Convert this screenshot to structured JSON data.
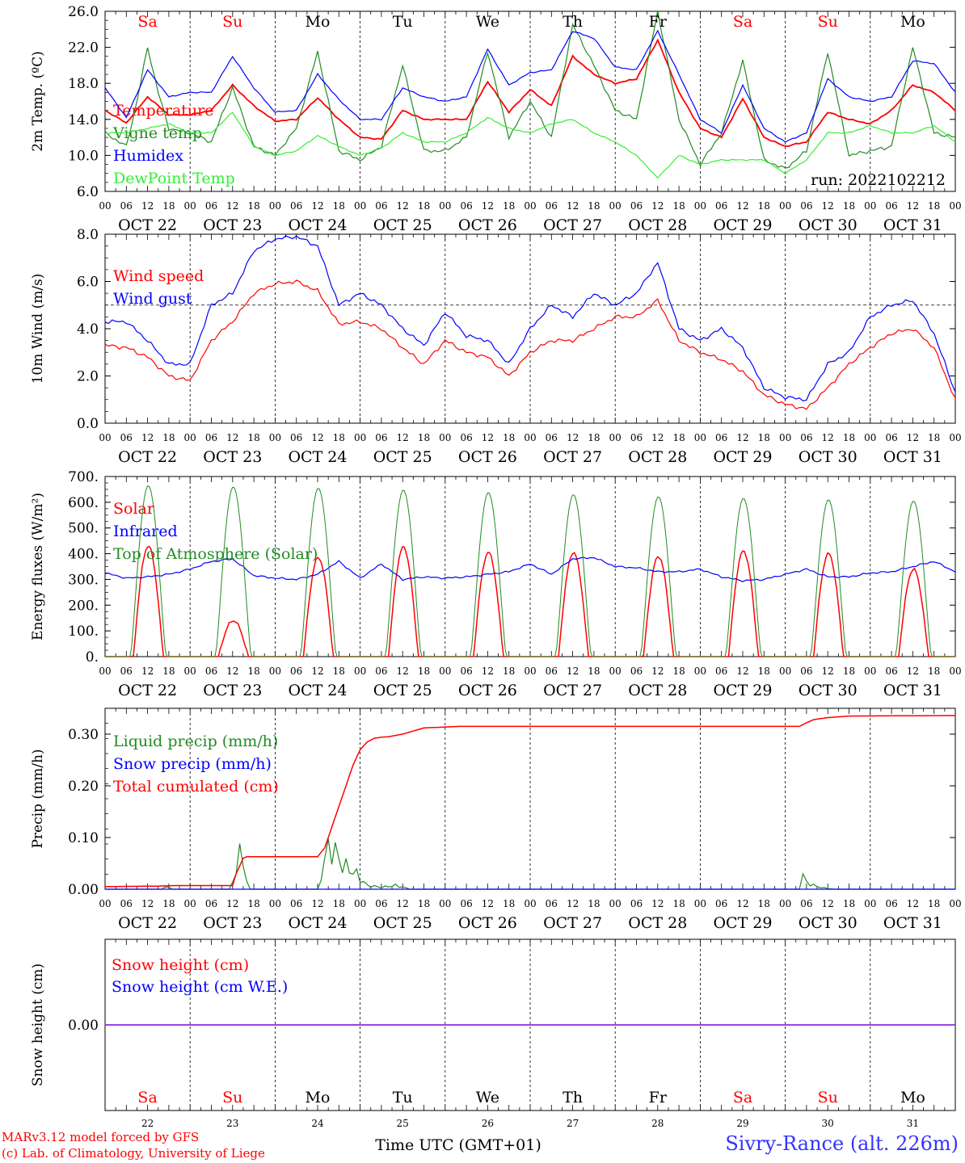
{
  "station": "Sivry-Rance (alt. 226m)",
  "credits": [
    "MARv3.12 model forced by GFS",
    "(c) Lab. of Climatology, University of Liege"
  ],
  "run_label": "run: 2022102212",
  "time_axis_label": "Time UTC (GMT+01)",
  "hour_tick_labels": [
    "00",
    "06",
    "12",
    "18"
  ],
  "date_labels": [
    "OCT 22",
    "OCT 23",
    "OCT 24",
    "OCT 25",
    "OCT 26",
    "OCT 27",
    "OCT 28",
    "OCT 29",
    "OCT 30",
    "OCT 31"
  ],
  "weekday_labels": [
    "Sa",
    "Su",
    "Mo",
    "Tu",
    "We",
    "Th",
    "Fr",
    "Sa",
    "Su",
    "Mo"
  ],
  "weekend_flags": [
    true,
    true,
    false,
    false,
    false,
    false,
    false,
    true,
    true,
    false
  ],
  "day_numbers": [
    "22",
    "23",
    "24",
    "25",
    "26",
    "27",
    "28",
    "29",
    "30",
    "31"
  ],
  "colors": {
    "temperature": "#ff0000",
    "vigne": "#228b22",
    "humidex": "#0000ff",
    "dewpoint": "#33ee33",
    "solar": "#ff0000",
    "infrared": "#0000ff",
    "toa": "#228b22",
    "liquid": "#228b22",
    "snowprecip": "#0000ff",
    "cumulated": "#ff0000",
    "snowheight": "#ff0000",
    "snowwe": "#0000ff",
    "snowline": "#8a2be2",
    "weekend": "#ff0000"
  },
  "chart_data": [
    {
      "type": "line",
      "ylabel": "2m Temp. (ºC)",
      "ylim": [
        6,
        26
      ],
      "yticks": [
        "6.0",
        "10.0",
        "14.0",
        "18.0",
        "22.0",
        "26.0"
      ],
      "x_unit": "hours since OCT 22 00 UTC",
      "series": [
        {
          "name": "Temperature",
          "key": "temperature",
          "x": [
            0,
            6,
            12,
            18,
            24,
            30,
            36,
            42,
            48,
            54,
            60,
            66,
            72,
            78,
            84,
            90,
            96,
            102,
            108,
            114,
            120,
            126,
            132,
            138,
            144,
            150,
            156,
            162,
            168,
            174,
            180,
            186,
            192,
            198,
            204,
            210,
            216,
            222,
            228,
            234,
            240
          ],
          "values": [
            15,
            13.6,
            16.5,
            14.5,
            14.5,
            15,
            17.8,
            15.5,
            13.8,
            14,
            16.4,
            14,
            12,
            11.8,
            15,
            14,
            14,
            14,
            18.2,
            14.8,
            17.3,
            15.5,
            21,
            19,
            18,
            18.5,
            22.8,
            17,
            13,
            12,
            16.3,
            12,
            11,
            11.5,
            14.8,
            14,
            13.5,
            15,
            17.8,
            17,
            15
          ]
        },
        {
          "name": "Vigne temp",
          "key": "vigne",
          "x": [
            0,
            6,
            9,
            12,
            15,
            18,
            24,
            30,
            36,
            42,
            48,
            54,
            60,
            66,
            72,
            78,
            84,
            90,
            96,
            102,
            108,
            114,
            120,
            126,
            132,
            138,
            144,
            150,
            156,
            162,
            168,
            174,
            180,
            186,
            192,
            198,
            204,
            210,
            216,
            222,
            228,
            234,
            240
          ],
          "values": [
            12.5,
            11,
            16,
            22,
            17,
            13,
            12.5,
            11.5,
            17.5,
            11,
            10,
            13,
            21.5,
            10.5,
            9.5,
            11,
            20,
            10.5,
            10.5,
            12,
            21.5,
            12,
            16,
            12,
            24.5,
            20,
            15,
            14,
            26,
            14,
            9,
            12.5,
            20.5,
            9.5,
            8.5,
            10.5,
            21.5,
            10,
            10.5,
            11,
            22,
            12.5,
            12
          ]
        },
        {
          "name": "Humidex",
          "key": "humidex",
          "x": [
            0,
            6,
            12,
            18,
            24,
            30,
            36,
            42,
            48,
            54,
            60,
            66,
            72,
            78,
            84,
            90,
            96,
            102,
            108,
            114,
            120,
            126,
            132,
            138,
            144,
            150,
            156,
            162,
            168,
            174,
            180,
            186,
            192,
            198,
            204,
            210,
            216,
            222,
            228,
            234,
            240
          ],
          "values": [
            17.5,
            14.2,
            19.5,
            16.5,
            17,
            17,
            21,
            17.5,
            14.8,
            15,
            19,
            16.2,
            14,
            14,
            17.5,
            16.5,
            16,
            16.5,
            21.8,
            17.8,
            19.2,
            19.5,
            23.8,
            23,
            19.8,
            19.5,
            23.8,
            19,
            14,
            12.5,
            17.8,
            13,
            11.5,
            12.5,
            18.5,
            16.5,
            16,
            16.5,
            20.5,
            20.2,
            17
          ]
        },
        {
          "name": "DewPoint Temp",
          "key": "dewpoint",
          "x": [
            0,
            6,
            12,
            18,
            24,
            30,
            36,
            42,
            48,
            54,
            60,
            66,
            72,
            78,
            84,
            90,
            96,
            102,
            108,
            114,
            120,
            126,
            132,
            138,
            144,
            150,
            156,
            162,
            168,
            174,
            180,
            186,
            192,
            198,
            204,
            210,
            216,
            222,
            228,
            234,
            240
          ],
          "values": [
            12.5,
            12.5,
            13,
            13.5,
            12.5,
            12.5,
            14.8,
            11,
            10,
            10.5,
            12.2,
            11,
            10,
            10.8,
            12.5,
            11.5,
            11.5,
            12.5,
            14.2,
            13,
            12.5,
            13.5,
            14,
            12.5,
            11.5,
            10,
            7.5,
            10,
            9,
            9.5,
            9.5,
            9.5,
            8,
            9.5,
            12.5,
            12.5,
            13.3,
            12.5,
            12.5,
            13.3,
            11.5
          ]
        }
      ]
    },
    {
      "type": "line",
      "ylabel": "10m Wind (m/s)",
      "ylim": [
        0,
        8
      ],
      "yticks": [
        "0.0",
        "2.0",
        "4.0",
        "6.0",
        "8.0"
      ],
      "reference_line": 5,
      "series": [
        {
          "name": "Wind speed",
          "key": "temperature",
          "x": [
            0,
            6,
            12,
            18,
            24,
            30,
            36,
            42,
            48,
            54,
            60,
            66,
            72,
            78,
            84,
            90,
            96,
            102,
            108,
            114,
            120,
            126,
            132,
            138,
            144,
            150,
            156,
            162,
            168,
            174,
            180,
            186,
            192,
            198,
            204,
            210,
            216,
            222,
            228,
            234,
            240
          ],
          "values": [
            3.3,
            3.2,
            2.8,
            2,
            1.8,
            3.5,
            4.3,
            5.5,
            5.9,
            6,
            5.6,
            4.2,
            4.3,
            4,
            3.2,
            2.5,
            3.5,
            3,
            2.8,
            2,
            3,
            3.5,
            3.5,
            4,
            4.5,
            4.5,
            5.2,
            3.5,
            3,
            2.7,
            2.2,
            1.2,
            0.8,
            0.6,
            1.5,
            2.5,
            3.2,
            3.8,
            4,
            3.2,
            1
          ]
        },
        {
          "name": "Wind gust",
          "key": "humidex",
          "x": [
            0,
            6,
            12,
            18,
            24,
            30,
            36,
            42,
            48,
            54,
            60,
            66,
            72,
            78,
            84,
            90,
            96,
            102,
            108,
            114,
            120,
            126,
            132,
            138,
            144,
            150,
            156,
            162,
            168,
            174,
            180,
            186,
            192,
            198,
            204,
            210,
            216,
            222,
            228,
            234,
            240
          ],
          "values": [
            4.3,
            4.3,
            3.5,
            2.5,
            2.5,
            5,
            5.5,
            7.3,
            7.8,
            7.9,
            7.5,
            5,
            5.5,
            5,
            4,
            3.3,
            4.7,
            3.7,
            3.5,
            2.5,
            4,
            5,
            4.5,
            5.5,
            5,
            5.5,
            6.8,
            4,
            3.5,
            4,
            3.2,
            1.5,
            1.1,
            1,
            2.5,
            3,
            4.5,
            5,
            5.2,
            3.8,
            1.3
          ]
        }
      ]
    },
    {
      "type": "line",
      "ylabel": "Energy fluxes (W/m²)",
      "ylim": [
        0,
        700
      ],
      "yticks": [
        "0.",
        "100.",
        "200.",
        "300.",
        "400.",
        "500.",
        "600.",
        "700."
      ],
      "series": [
        {
          "name": "Solar",
          "key": "solar",
          "shape": "diurnal",
          "values": [
            430,
            140,
            385,
            425,
            405,
            405,
            390,
            410,
            400,
            340
          ]
        },
        {
          "name": "Infrared",
          "key": "infrared",
          "x": [
            0,
            6,
            12,
            18,
            24,
            30,
            36,
            42,
            48,
            54,
            60,
            66,
            72,
            78,
            84,
            90,
            96,
            102,
            108,
            114,
            120,
            126,
            132,
            138,
            144,
            150,
            156,
            162,
            168,
            174,
            180,
            186,
            192,
            198,
            204,
            210,
            216,
            222,
            228,
            234,
            240
          ],
          "values": [
            325,
            305,
            310,
            320,
            340,
            370,
            380,
            315,
            305,
            300,
            320,
            370,
            305,
            360,
            300,
            310,
            305,
            310,
            320,
            330,
            360,
            320,
            380,
            385,
            350,
            345,
            330,
            330,
            340,
            310,
            295,
            300,
            320,
            340,
            310,
            310,
            325,
            330,
            350,
            370,
            330
          ]
        },
        {
          "name": "Top of Atmosphere (Solar)",
          "key": "toa",
          "shape": "diurnal",
          "values": [
            665,
            660,
            655,
            648,
            638,
            630,
            622,
            615,
            610,
            605
          ]
        }
      ]
    },
    {
      "type": "line",
      "ylabel": "Precip (mm/h)",
      "ylim": [
        0,
        0.35
      ],
      "yticks": [
        "0.00",
        "0.10",
        "0.20",
        "0.30"
      ],
      "series": [
        {
          "name": "Liquid precip (mm/h)",
          "key": "liquid",
          "x": [
            0,
            16,
            17,
            18,
            19,
            35,
            37,
            38,
            39,
            40,
            41,
            60,
            62,
            63,
            64,
            66,
            68,
            70,
            72,
            74,
            76,
            78,
            80,
            82,
            84,
            86,
            196,
            197,
            198,
            200,
            202,
            204,
            206
          ],
          "values": [
            0,
            0,
            0.01,
            0.005,
            0,
            0,
            0.05,
            0.09,
            0.1,
            0.02,
            0,
            0,
            0.08,
            0.11,
            0.12,
            0.08,
            0.06,
            0.05,
            0.03,
            0.01,
            0.008,
            0.005,
            0.008,
            0.01,
            0.006,
            0,
            0,
            0.035,
            0.02,
            0.01,
            0.005,
            0.002,
            0
          ]
        },
        {
          "name": "Snow precip (mm/h)",
          "key": "snowprecip",
          "x": [
            0,
            240
          ],
          "values": [
            0,
            0
          ]
        },
        {
          "name": "Total cumulated (cm)",
          "key": "cumulated",
          "x": [
            0,
            15,
            20,
            24,
            36,
            37,
            39,
            40,
            60,
            62,
            64,
            66,
            68,
            70,
            72,
            74,
            76,
            78,
            80,
            84,
            90,
            100,
            196,
            198,
            200,
            204,
            210,
            240
          ],
          "values": [
            0.005,
            0.006,
            0.007,
            0.007,
            0.007,
            0.03,
            0.06,
            0.063,
            0.063,
            0.08,
            0.12,
            0.16,
            0.2,
            0.24,
            0.27,
            0.285,
            0.292,
            0.294,
            0.295,
            0.3,
            0.312,
            0.315,
            0.315,
            0.322,
            0.328,
            0.332,
            0.335,
            0.336
          ]
        }
      ]
    },
    {
      "type": "line",
      "ylabel": "Snow height (cm)",
      "yticks": [
        "0.00"
      ],
      "series": [
        {
          "name": "Snow height (cm)",
          "key": "snowheight",
          "x": [
            0,
            240
          ],
          "values": [
            0,
            0
          ]
        },
        {
          "name": "Snow height (cm W.E.)",
          "key": "snowwe",
          "x": [
            0,
            240
          ],
          "values": [
            0,
            0
          ]
        }
      ]
    }
  ]
}
